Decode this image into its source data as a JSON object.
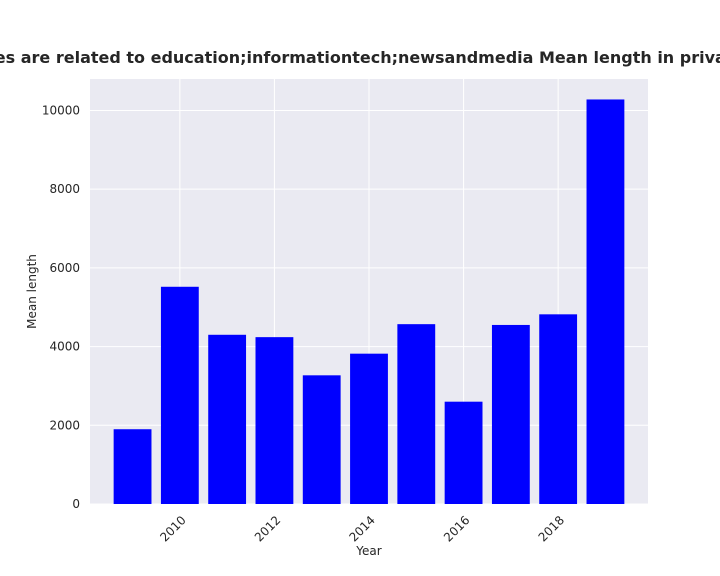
{
  "chart_data": {
    "type": "bar",
    "title": "Categories are related to education;informationtech;newsandmedia Mean length in privacy policies",
    "xlabel": "Year",
    "ylabel": "Mean length",
    "x": [
      2009,
      2010,
      2011,
      2012,
      2013,
      2014,
      2015,
      2016,
      2017,
      2018,
      2019
    ],
    "values": [
      1900,
      5520,
      4300,
      4240,
      3270,
      3820,
      4570,
      2600,
      4550,
      4820,
      10280
    ],
    "xticks": [
      "2010",
      "2012",
      "2014",
      "2016",
      "2018"
    ],
    "yticks": [
      "0",
      "2000",
      "4000",
      "6000",
      "8000",
      "10000"
    ],
    "xlim": [
      2008.1,
      2019.9
    ],
    "ylim": [
      0,
      10800
    ],
    "bar_color": "#0000ff",
    "background_color": "#eaeaf2",
    "grid_color": "#ffffff",
    "grid": true
  }
}
